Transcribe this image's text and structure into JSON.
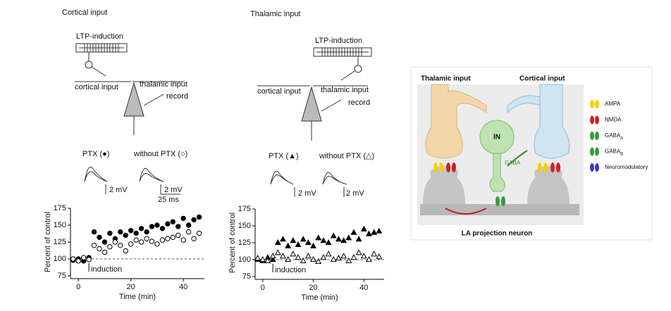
{
  "chart_data": [
    {
      "type": "scatter",
      "title": "Cortical input",
      "xlabel": "Time (min)",
      "ylabel": "Percent of control",
      "x": [
        -2,
        0,
        2,
        4,
        6,
        8,
        10,
        12,
        14,
        16,
        18,
        20,
        22,
        24,
        26,
        28,
        30,
        32,
        34,
        36,
        38,
        40,
        42,
        44,
        46
      ],
      "series": [
        {
          "name": "PTX (●)",
          "color": "#000000",
          "marker": "circle",
          "filled": true,
          "values": [
            98,
            100,
            97,
            102,
            140,
            132,
            125,
            138,
            130,
            140,
            135,
            142,
            138,
            145,
            140,
            148,
            150,
            145,
            152,
            155,
            148,
            160,
            150,
            158,
            162
          ]
        },
        {
          "name": "without PTX (○)",
          "color": "#000000",
          "marker": "circle",
          "filled": false,
          "values": [
            100,
            97,
            102,
            99,
            120,
            115,
            110,
            118,
            125,
            120,
            112,
            122,
            128,
            125,
            130,
            126,
            122,
            128,
            130,
            132,
            135,
            128,
            140,
            130,
            138
          ]
        }
      ],
      "xlim": [
        -3,
        48
      ],
      "xticks": [
        0,
        20,
        40
      ],
      "ylim": [
        75,
        175
      ],
      "yticks": [
        75,
        100,
        125,
        150,
        175
      ],
      "reference_line": 100,
      "annotation": {
        "text": "induction",
        "x": 4
      },
      "scale_bars": [
        "2 mV",
        "2 mV",
        "25 ms"
      ]
    },
    {
      "type": "scatter",
      "title": "Thalamic input",
      "xlabel": "Time (min)",
      "ylabel": "Percent of control",
      "x": [
        -2,
        0,
        2,
        4,
        6,
        8,
        10,
        12,
        14,
        16,
        18,
        20,
        22,
        24,
        26,
        28,
        30,
        32,
        34,
        36,
        38,
        40,
        42,
        44,
        46
      ],
      "series": [
        {
          "name": "PTX (▲)",
          "color": "#000000",
          "marker": "triangle",
          "filled": true,
          "values": [
            100,
            98,
            103,
            100,
            125,
            130,
            120,
            128,
            122,
            130,
            125,
            120,
            132,
            128,
            125,
            135,
            130,
            128,
            132,
            140,
            130,
            145,
            138,
            140,
            142
          ]
        },
        {
          "name": "without PTX (△)",
          "color": "#000000",
          "marker": "triangle",
          "filled": false,
          "values": [
            102,
            100,
            98,
            105,
            110,
            105,
            100,
            108,
            103,
            98,
            105,
            100,
            97,
            103,
            108,
            100,
            102,
            105,
            98,
            103,
            110,
            105,
            100,
            108,
            104
          ]
        }
      ],
      "xlim": [
        -3,
        48
      ],
      "xticks": [
        0,
        20,
        40
      ],
      "ylim": [
        75,
        175
      ],
      "yticks": [
        75,
        100,
        125,
        150,
        175
      ],
      "reference_line": 100,
      "annotation": {
        "text": "induction",
        "x": 4
      },
      "scale_bars": [
        "2 mV",
        "2 mV"
      ]
    }
  ],
  "schematics": [
    {
      "induction_label": "LTP-induction",
      "labels": [
        "cortical input",
        "thalamic input",
        "record"
      ]
    },
    {
      "induction_label": "LTP-induction",
      "labels": [
        "cortical input",
        "thalamic input",
        "record"
      ]
    }
  ],
  "model_diagram": {
    "labels": [
      "Thalamic input",
      "Cortical input",
      "IN",
      "GABA",
      "LA projection neuron"
    ],
    "legend": [
      {
        "name": "AMPA"
      },
      {
        "name": "NMDA"
      },
      {
        "name": "GABA",
        "subscript": "A"
      },
      {
        "name": "GABA",
        "subscript": "B"
      },
      {
        "name": "Neuromodulatory"
      }
    ]
  }
}
